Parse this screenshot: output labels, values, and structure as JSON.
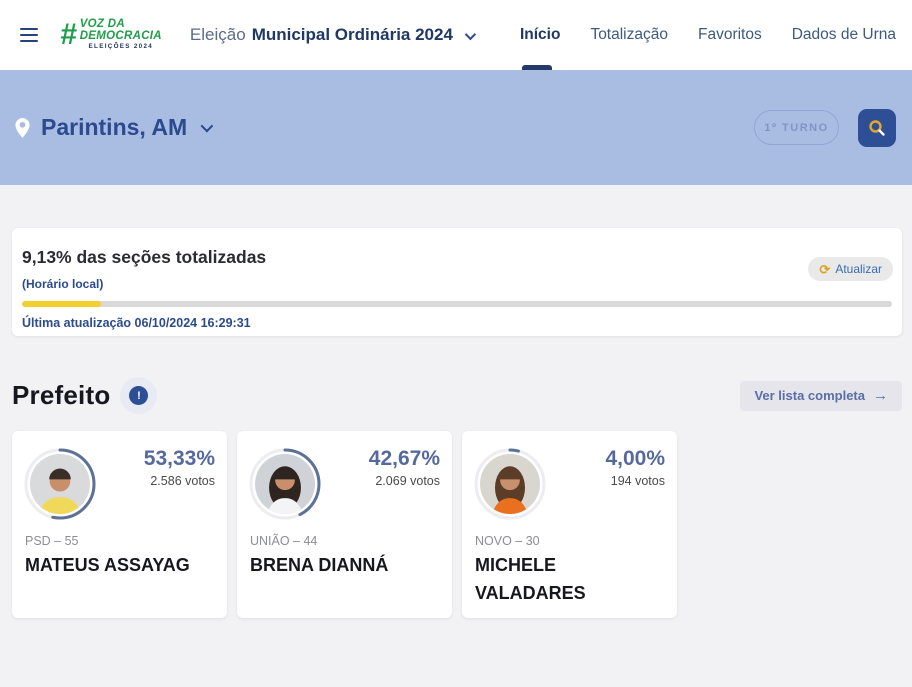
{
  "header": {
    "logo": {
      "hash": "#",
      "line1": "VOZ DA",
      "line2": "DEMOCRACIA",
      "line3": "ELEIÇÕES 2024"
    },
    "election_prefix": "Eleição",
    "election_name": "Municipal Ordinária 2024",
    "nav": [
      {
        "label": "Início",
        "active": true
      },
      {
        "label": "Totalização",
        "active": false
      },
      {
        "label": "Favoritos",
        "active": false
      },
      {
        "label": "Dados de Urna",
        "active": false
      }
    ]
  },
  "location_bar": {
    "location": "Parintins, AM",
    "round_badge": "1º TURNO"
  },
  "progress": {
    "title": "9,13% das seções totalizadas",
    "subtitle": "(Horário local)",
    "percent_value": 9.13,
    "last_update": "Última atualização 06/10/2024 16:29:31",
    "refresh_label": "Atualizar",
    "refresh_glyph": "⟳",
    "bar_fill_color": "#f2ce2e"
  },
  "section": {
    "title": "Prefeito",
    "info_glyph": "!",
    "view_all_label": "Ver lista completa",
    "view_all_arrow": "→"
  },
  "candidates": [
    {
      "percent": "53,33%",
      "percent_value": 53.33,
      "votes": "2.586 votos",
      "party": "PSD – 55",
      "name": "MATEUS ASSAYAG",
      "avatar": {
        "bg": "#d8dadc",
        "skin": "#c98e6c",
        "hair": "#3a2e28",
        "shirt": "#f0d95a"
      }
    },
    {
      "percent": "42,67%",
      "percent_value": 42.67,
      "votes": "2.069 votos",
      "party": "UNIÃO – 44",
      "name": "BRENA DIANNÁ",
      "avatar": {
        "bg": "#cfd3d8",
        "skin": "#c98e6c",
        "hair": "#2e2420",
        "shirt": "#f4f4f6"
      }
    },
    {
      "percent": "4,00%",
      "percent_value": 4.0,
      "votes": "194 votos",
      "party": "NOVO – 30",
      "name": "MICHELE VALADARES",
      "avatar": {
        "bg": "#d9d5cf",
        "skin": "#c9906e",
        "hair": "#5b3d28",
        "shirt": "#e8701f"
      }
    }
  ],
  "colors": {
    "banner_bg": "#a9bce1",
    "navy": "#1f3864",
    "accent_blue": "#2e4f96",
    "gold": "#e3a92c",
    "percent_blue": "#56699e",
    "ring": "#5b7296",
    "progress_yellow": "#f2ce2e"
  }
}
